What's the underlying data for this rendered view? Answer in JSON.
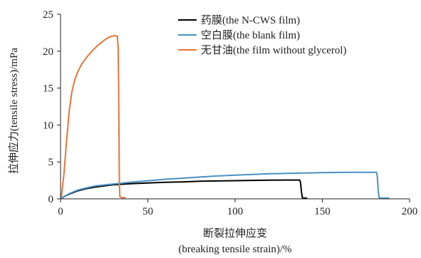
{
  "chart_data": {
    "type": "line",
    "xlabel": "断裂拉伸应变",
    "xlabel_en": "(breaking tensile strain)/%",
    "ylabel": "拉伸应力(tensile stress)/mPa",
    "xlim": [
      0,
      200
    ],
    "ylim": [
      0,
      25
    ],
    "x_ticks": [
      0,
      50,
      100,
      150,
      200
    ],
    "y_ticks": [
      0,
      5,
      10,
      15,
      20,
      25
    ],
    "grid": false,
    "legend_position": "top-right",
    "series": [
      {
        "name": "药膜(the N-CWS film)",
        "color": "#000000",
        "points": [
          [
            0.5,
            0.05
          ],
          [
            2,
            0.3
          ],
          [
            5,
            0.65
          ],
          [
            10,
            1.1
          ],
          [
            15,
            1.4
          ],
          [
            20,
            1.6
          ],
          [
            30,
            1.9
          ],
          [
            40,
            2.05
          ],
          [
            50,
            2.15
          ],
          [
            60,
            2.25
          ],
          [
            70,
            2.3
          ],
          [
            80,
            2.38
          ],
          [
            90,
            2.42
          ],
          [
            100,
            2.46
          ],
          [
            110,
            2.5
          ],
          [
            120,
            2.53
          ],
          [
            130,
            2.55
          ],
          [
            137,
            2.55
          ],
          [
            137.5,
            2.2
          ],
          [
            138,
            1.0
          ],
          [
            138.5,
            0.2
          ],
          [
            139,
            0.1
          ],
          [
            141,
            0.1
          ]
        ]
      },
      {
        "name": "空白膜(the blank film)",
        "color": "#4a90c4",
        "points": [
          [
            0.5,
            0.05
          ],
          [
            2,
            0.3
          ],
          [
            5,
            0.7
          ],
          [
            10,
            1.2
          ],
          [
            15,
            1.5
          ],
          [
            20,
            1.75
          ],
          [
            30,
            2.0
          ],
          [
            40,
            2.25
          ],
          [
            50,
            2.45
          ],
          [
            60,
            2.65
          ],
          [
            70,
            2.8
          ],
          [
            80,
            2.95
          ],
          [
            90,
            3.1
          ],
          [
            100,
            3.2
          ],
          [
            110,
            3.3
          ],
          [
            120,
            3.4
          ],
          [
            130,
            3.45
          ],
          [
            140,
            3.5
          ],
          [
            150,
            3.55
          ],
          [
            160,
            3.58
          ],
          [
            170,
            3.6
          ],
          [
            181,
            3.6
          ],
          [
            181.5,
            3.0
          ],
          [
            182,
            1.2
          ],
          [
            182.5,
            0.2
          ],
          [
            183,
            0.1
          ],
          [
            188,
            0.1
          ]
        ]
      },
      {
        "name": "无甘油(the film without glycerol)",
        "color": "#e8743b",
        "points": [
          [
            0.5,
            0.3
          ],
          [
            2,
            3.5
          ],
          [
            3.5,
            8
          ],
          [
            5,
            12
          ],
          [
            6.5,
            14.5
          ],
          [
            8,
            16
          ],
          [
            10,
            17.3
          ],
          [
            12,
            18.2
          ],
          [
            15,
            19.2
          ],
          [
            18,
            20.0
          ],
          [
            21,
            20.7
          ],
          [
            24,
            21.3
          ],
          [
            27,
            21.8
          ],
          [
            29,
            22.0
          ],
          [
            31,
            22.1
          ],
          [
            32.5,
            22.05
          ],
          [
            33,
            20.5
          ],
          [
            33.3,
            15
          ],
          [
            33.5,
            8
          ],
          [
            33.7,
            2
          ],
          [
            34,
            0.3
          ],
          [
            35,
            0.15
          ],
          [
            37,
            0.15
          ]
        ]
      }
    ]
  }
}
